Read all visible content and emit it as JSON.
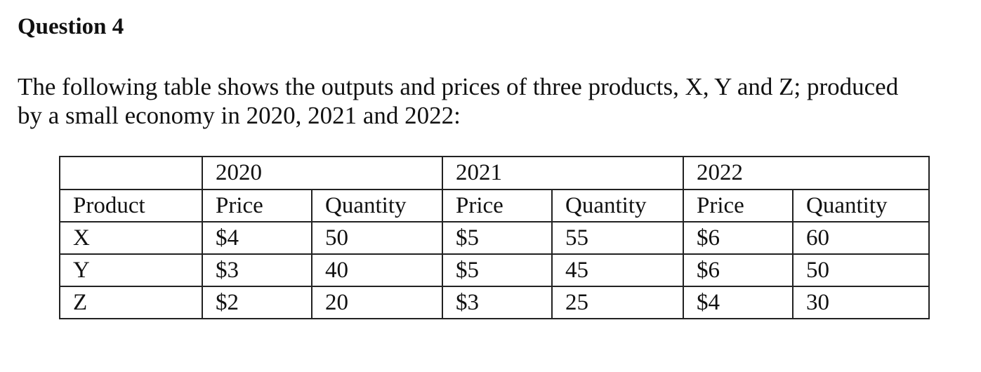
{
  "header": {
    "title": "Question 4"
  },
  "paragraph": {
    "lines": [
      "The following table shows the outputs and prices of three products, X, Y and Z; produced",
      "by a small economy in 2020, 2021 and 2022:"
    ]
  },
  "table": {
    "years": [
      "2020",
      "2021",
      "2022"
    ],
    "columns": [
      "Product",
      "Price",
      "Quantity",
      "Price",
      "Quantity",
      "Price",
      "Quantity"
    ],
    "rows": [
      [
        "X",
        "$4",
        "50",
        "$5",
        "55",
        "$6",
        "60"
      ],
      [
        "Y",
        "$3",
        "40",
        "$5",
        "45",
        "$6",
        "50"
      ],
      [
        "Z",
        "$2",
        "20",
        "$3",
        "25",
        "$4",
        "30"
      ]
    ]
  }
}
